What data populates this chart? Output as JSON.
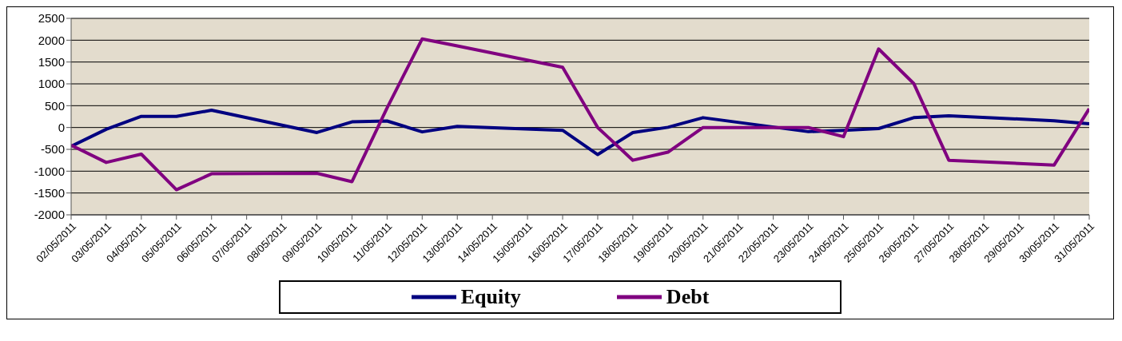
{
  "chart_data": {
    "type": "line",
    "categories": [
      "02/05/2011",
      "03/05/2011",
      "04/05/2011",
      "05/05/2011",
      "06/05/2011",
      "07/05/2011",
      "08/05/2011",
      "09/05/2011",
      "10/05/2011",
      "11/05/2011",
      "12/05/2011",
      "13/05/2011",
      "14/05/2011",
      "15/05/2011",
      "16/05/2011",
      "17/05/2011",
      "18/05/2011",
      "19/05/2011",
      "20/05/2011",
      "21/05/2011",
      "22/05/2011",
      "23/05/2011",
      "24/05/2011",
      "25/05/2011",
      "26/05/2011",
      "27/05/2011",
      "28/05/2011",
      "29/05/2011",
      "30/05/2011",
      "31/05/2011"
    ],
    "series": [
      {
        "name": "Equity",
        "color": "#000080",
        "values": [
          -430,
          -40,
          255,
          255,
          395,
          null,
          null,
          -115,
          130,
          150,
          -100,
          25,
          null,
          null,
          -65,
          -620,
          -115,
          5,
          225,
          null,
          null,
          -95,
          -65,
          -25,
          225,
          270,
          null,
          null,
          155,
          85
        ]
      },
      {
        "name": "Debt",
        "color": "#800080",
        "values": [
          -405,
          -800,
          -610,
          -1425,
          -1060,
          null,
          null,
          -1050,
          -1240,
          450,
          2030,
          1870,
          null,
          null,
          1380,
          0,
          -750,
          -565,
          0,
          null,
          null,
          0,
          -210,
          1800,
          1010,
          -750,
          null,
          null,
          -860,
          430
        ]
      }
    ],
    "ylim": [
      -2000,
      2500
    ],
    "yticks": [
      -2000,
      -1500,
      -1000,
      -500,
      0,
      500,
      1000,
      1500,
      2000,
      2500
    ],
    "grid": "y",
    "legend": "bottom",
    "marker": "none",
    "line_style": "solid"
  }
}
